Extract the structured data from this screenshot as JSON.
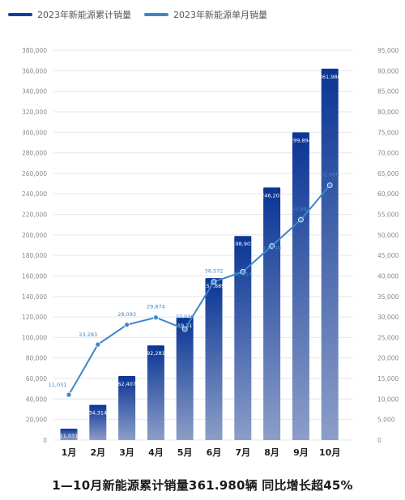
{
  "legend": {
    "cumulative": "2023年新能源累计销量",
    "monthly": "2023年新能源单月销量"
  },
  "caption": "1—10月新能源累计销量361.980辆 同比增长超45%",
  "colors": {
    "bar_top": "#0b3595",
    "bar_bottom": "#8c9ec8",
    "line": "#3f86c7",
    "legend_bar": "#12409d",
    "legend_line": "#3f86c7"
  },
  "chart_data": {
    "type": "bar",
    "categories": [
      "1月",
      "2月",
      "3月",
      "4月",
      "5月",
      "6月",
      "7月",
      "8月",
      "9月",
      "10月"
    ],
    "series": [
      {
        "name": "2023年新能源累计销量",
        "type": "bar",
        "axis": "left",
        "values": [
          11031,
          34314,
          62407,
          92281,
          119317,
          157889,
          198903,
          246202,
          299894,
          361980
        ],
        "labels": [
          "11,031",
          "34,314",
          "62,407",
          "92,281",
          "119,317",
          "157,889",
          "198,903",
          "246,202",
          "299,894",
          "361,980"
        ]
      },
      {
        "name": "2023年新能源单月销量",
        "type": "line",
        "axis": "right",
        "values": [
          11031,
          23283,
          28093,
          29874,
          27036,
          38572,
          41014,
          47299,
          53692,
          62086
        ],
        "labels": [
          "11,031",
          "23,283",
          "28,093",
          "29,874",
          "27,036",
          "38,572",
          "41,014",
          "47,299",
          "53,692",
          "62,086"
        ]
      }
    ],
    "ylim_left": [
      0,
      380000
    ],
    "ylim_right": [
      0,
      95000
    ],
    "yticks_left": [
      "0",
      "20,000",
      "40,000",
      "60,000",
      "80,000",
      "100,000",
      "120,000",
      "140,000",
      "160,000",
      "180,000",
      "200,000",
      "220,000",
      "240,000",
      "260,000",
      "280,000",
      "300,000",
      "320,000",
      "340,000",
      "360,000",
      "380,000"
    ],
    "yticks_right": [
      "0",
      "5,000",
      "10,000",
      "15,000",
      "20,000",
      "25,000",
      "30,000",
      "35,000",
      "40,000",
      "45,000",
      "50,000",
      "55,000",
      "60,000",
      "65,000",
      "70,000",
      "75,000",
      "80,000",
      "85,000",
      "90,000",
      "95,000"
    ],
    "grid": true,
    "legend_position": "top-left"
  }
}
